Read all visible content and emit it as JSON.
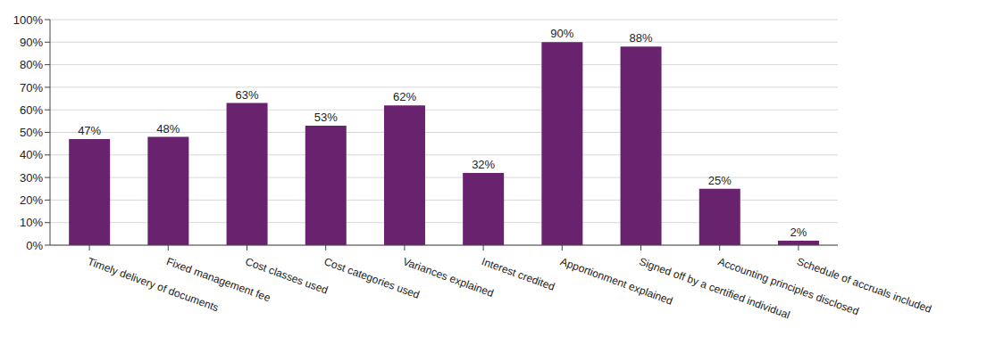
{
  "chart_data": {
    "type": "bar",
    "categories": [
      "Timely delivery of documents",
      "Fixed management fee",
      "Cost classes used",
      "Cost categories used",
      "Variances explained",
      "Interest credited",
      "Apportionment explained",
      "Signed off by a certified individual",
      "Accounting principles disclosed",
      "Schedule of accruals included"
    ],
    "values": [
      47,
      48,
      63,
      53,
      62,
      32,
      90,
      88,
      25,
      2
    ],
    "value_labels": [
      "47%",
      "48%",
      "63%",
      "53%",
      "62%",
      "32%",
      "90%",
      "88%",
      "25%",
      "2%"
    ],
    "color": "#68226e",
    "ylim": [
      0,
      100
    ],
    "yticks": [
      {
        "value": 0,
        "label": "0%"
      },
      {
        "value": 10,
        "label": "10%"
      },
      {
        "value": 20,
        "label": "20%"
      },
      {
        "value": 30,
        "label": "30%"
      },
      {
        "value": 40,
        "label": "40%"
      },
      {
        "value": 50,
        "label": "50%"
      },
      {
        "value": 60,
        "label": "60%"
      },
      {
        "value": 70,
        "label": "70%"
      },
      {
        "value": 80,
        "label": "80%"
      },
      {
        "value": 90,
        "label": "90%"
      },
      {
        "value": 100,
        "label": "100%"
      }
    ],
    "grid": true,
    "data_labels": true
  }
}
